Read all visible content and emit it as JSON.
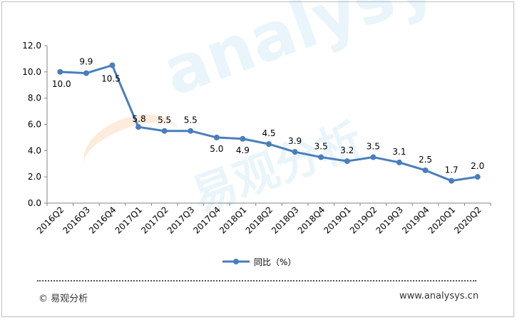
{
  "chart_data": {
    "type": "line",
    "categories": [
      "2016Q2",
      "2016Q3",
      "2016Q4",
      "2017Q1",
      "2017Q2",
      "2017Q3",
      "2017Q4",
      "2018Q1",
      "2018Q2",
      "2018Q3",
      "2018Q4",
      "2019Q1",
      "2019Q2",
      "2019Q3",
      "2019Q4",
      "2020Q1",
      "2020Q2"
    ],
    "series": [
      {
        "name": "同比（%）",
        "values": [
          10.0,
          9.9,
          10.5,
          5.8,
          5.5,
          5.5,
          5.0,
          4.9,
          4.5,
          3.9,
          3.5,
          3.2,
          3.5,
          3.1,
          2.5,
          1.7,
          2.0
        ],
        "color": "#4a7ebb"
      }
    ],
    "data_labels": [
      "10.0",
      "9.9",
      "10.5",
      "5.8",
      "5.5",
      "5.5",
      "5.0",
      "4.9",
      "4.5",
      "3.9",
      "3.5",
      "3.2",
      "3.5",
      "3.1",
      "2.5",
      "1.7",
      "2.0"
    ],
    "ylim": [
      0,
      12
    ],
    "yticks": [
      "0.0",
      "2.0",
      "4.0",
      "6.0",
      "8.0",
      "10.0",
      "12.0"
    ],
    "legend_position": "bottom",
    "grid": false
  },
  "watermark": {
    "latin": "analysys",
    "cjk": "易观分析"
  },
  "footer": {
    "left": "© 易观分析",
    "right": "www.analysys.cn"
  }
}
